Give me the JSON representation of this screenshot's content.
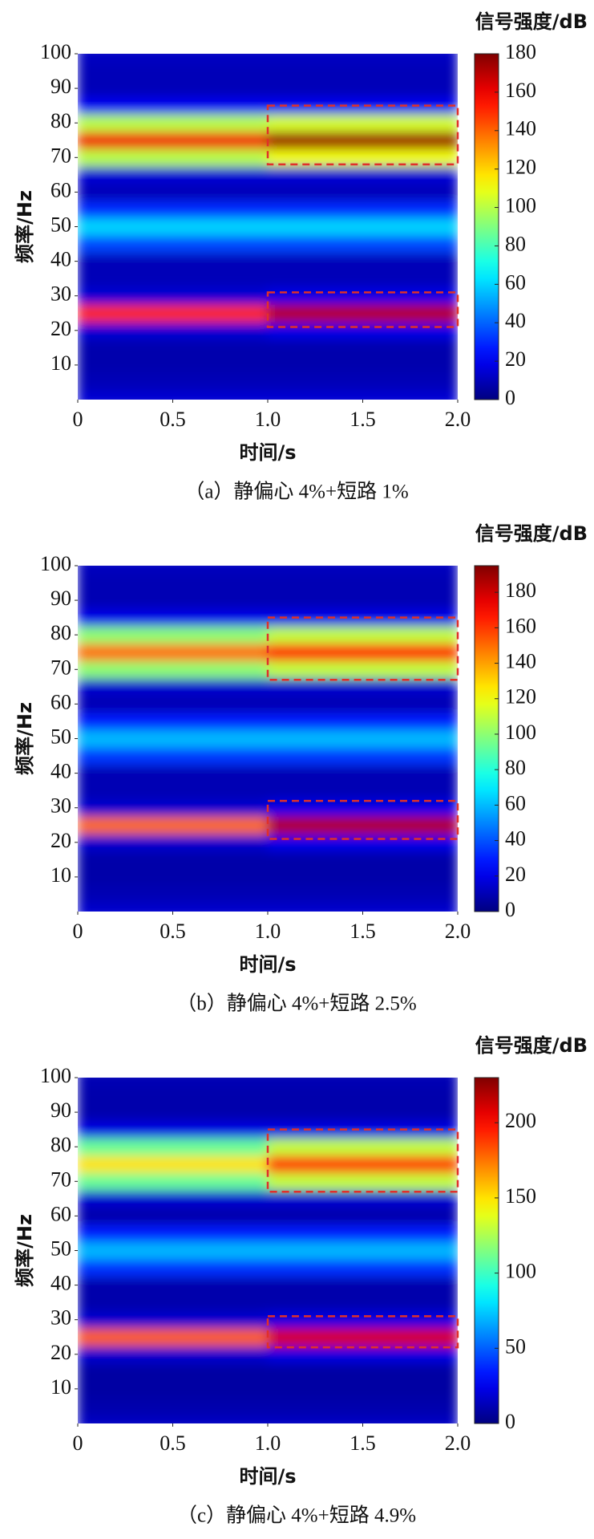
{
  "chart_data": [
    {
      "type": "heatmap",
      "colorbar_label": "信号强度/dB",
      "ylabel": "频率/Hz",
      "xlabel": "时间/s",
      "caption": "（a）静偏心 4%+短路 1%",
      "colormap": "jet",
      "xlim": [
        0,
        2
      ],
      "ylim": [
        0,
        100
      ],
      "xticks": [
        0,
        0.5,
        {
          "value": 1,
          "label": "1.0"
        },
        1.5,
        {
          "value": 2,
          "label": "2.0"
        }
      ],
      "yticks": [
        10,
        20,
        30,
        40,
        50,
        60,
        70,
        80,
        90,
        100
      ],
      "zlim": [
        0,
        180
      ],
      "zticks": [
        0,
        20,
        40,
        60,
        80,
        100,
        120,
        140,
        160,
        180
      ],
      "x": [
        0.25,
        0.75,
        1.25,
        1.75
      ],
      "y": [
        0,
        5,
        10,
        15,
        20,
        25,
        30,
        35,
        40,
        45,
        50,
        55,
        60,
        65,
        70,
        75,
        80,
        85,
        90,
        95,
        100
      ],
      "z": [
        [
          15,
          15,
          15,
          15
        ],
        [
          10,
          10,
          10,
          10
        ],
        [
          8,
          8,
          8,
          8
        ],
        [
          8,
          8,
          8,
          8
        ],
        [
          15,
          15,
          18,
          18
        ],
        [
          150,
          150,
          170,
          170
        ],
        [
          15,
          15,
          18,
          18
        ],
        [
          10,
          10,
          10,
          10
        ],
        [
          10,
          10,
          10,
          10
        ],
        [
          35,
          35,
          35,
          35
        ],
        [
          60,
          60,
          60,
          60
        ],
        [
          30,
          30,
          30,
          30
        ],
        [
          10,
          10,
          10,
          10
        ],
        [
          15,
          15,
          15,
          15
        ],
        [
          100,
          100,
          110,
          110
        ],
        [
          160,
          160,
          175,
          175
        ],
        [
          100,
          100,
          105,
          105
        ],
        [
          20,
          20,
          20,
          20
        ],
        [
          10,
          10,
          10,
          10
        ],
        [
          10,
          10,
          10,
          10
        ],
        [
          12,
          12,
          12,
          12
        ]
      ],
      "boxes": [
        {
          "xlim": [
            1,
            2
          ],
          "ylim": [
            68,
            85
          ]
        },
        {
          "xlim": [
            1,
            2
          ],
          "ylim": [
            21,
            31
          ]
        }
      ]
    },
    {
      "type": "heatmap",
      "colorbar_label": "信号强度/dB",
      "ylabel": "频率/Hz",
      "xlabel": "时间/s",
      "caption": "（b）静偏心 4%+短路 2.5%",
      "colormap": "jet",
      "xlim": [
        0,
        2
      ],
      "ylim": [
        0,
        100
      ],
      "xticks": [
        0,
        0.5,
        {
          "value": 1,
          "label": "1.0"
        },
        1.5,
        {
          "value": 2,
          "label": "2.0"
        }
      ],
      "yticks": [
        10,
        20,
        30,
        40,
        50,
        60,
        70,
        80,
        90,
        100
      ],
      "zlim": [
        0,
        195
      ],
      "zticks": [
        0,
        20,
        40,
        60,
        80,
        100,
        120,
        140,
        160,
        180
      ],
      "x": [
        0.25,
        0.75,
        1.25,
        1.75
      ],
      "y": [
        0,
        5,
        10,
        15,
        20,
        25,
        30,
        35,
        40,
        45,
        50,
        55,
        60,
        65,
        70,
        75,
        80,
        85,
        90,
        95,
        100
      ],
      "z": [
        [
          15,
          15,
          15,
          15
        ],
        [
          10,
          10,
          10,
          10
        ],
        [
          8,
          8,
          8,
          8
        ],
        [
          8,
          8,
          8,
          8
        ],
        [
          15,
          15,
          20,
          20
        ],
        [
          150,
          150,
          185,
          185
        ],
        [
          15,
          15,
          20,
          20
        ],
        [
          10,
          10,
          10,
          10
        ],
        [
          10,
          10,
          10,
          10
        ],
        [
          35,
          35,
          35,
          35
        ],
        [
          60,
          60,
          60,
          60
        ],
        [
          30,
          30,
          30,
          30
        ],
        [
          10,
          10,
          10,
          10
        ],
        [
          15,
          15,
          15,
          15
        ],
        [
          100,
          100,
          110,
          110
        ],
        [
          150,
          150,
          170,
          170
        ],
        [
          100,
          100,
          110,
          110
        ],
        [
          20,
          20,
          20,
          20
        ],
        [
          10,
          10,
          10,
          10
        ],
        [
          10,
          10,
          10,
          10
        ],
        [
          12,
          12,
          12,
          12
        ]
      ],
      "boxes": [
        {
          "xlim": [
            1,
            2
          ],
          "ylim": [
            67,
            85
          ]
        },
        {
          "xlim": [
            1,
            2
          ],
          "ylim": [
            21,
            32
          ]
        }
      ]
    },
    {
      "type": "heatmap",
      "colorbar_label": "信号强度/dB",
      "ylabel": "频率/Hz",
      "xlabel": "时间/s",
      "caption": "（c）静偏心 4%+短路 4.9%",
      "colormap": "jet",
      "xlim": [
        0,
        2
      ],
      "ylim": [
        0,
        100
      ],
      "xticks": [
        0,
        0.5,
        {
          "value": 1,
          "label": "1.0"
        },
        1.5,
        {
          "value": 2,
          "label": "2.0"
        }
      ],
      "yticks": [
        10,
        20,
        30,
        40,
        50,
        60,
        70,
        80,
        90,
        100
      ],
      "zlim": [
        0,
        230
      ],
      "zticks": [
        0,
        50,
        100,
        150,
        200
      ],
      "x": [
        0.25,
        0.75,
        1.25,
        1.75
      ],
      "y": [
        0,
        5,
        10,
        15,
        20,
        25,
        30,
        35,
        40,
        45,
        50,
        55,
        60,
        65,
        70,
        75,
        80,
        85,
        90,
        95,
        100
      ],
      "z": [
        [
          15,
          15,
          15,
          15
        ],
        [
          10,
          10,
          10,
          10
        ],
        [
          8,
          8,
          8,
          8
        ],
        [
          8,
          8,
          8,
          8
        ],
        [
          18,
          18,
          22,
          22
        ],
        [
          180,
          180,
          210,
          210
        ],
        [
          18,
          18,
          22,
          22
        ],
        [
          10,
          10,
          10,
          10
        ],
        [
          10,
          10,
          10,
          10
        ],
        [
          40,
          40,
          40,
          40
        ],
        [
          70,
          70,
          70,
          70
        ],
        [
          35,
          35,
          35,
          35
        ],
        [
          10,
          10,
          10,
          10
        ],
        [
          18,
          18,
          18,
          18
        ],
        [
          110,
          110,
          130,
          130
        ],
        [
          150,
          150,
          190,
          190
        ],
        [
          110,
          110,
          130,
          130
        ],
        [
          22,
          22,
          22,
          22
        ],
        [
          10,
          10,
          10,
          10
        ],
        [
          10,
          10,
          10,
          10
        ],
        [
          12,
          12,
          12,
          12
        ]
      ],
      "boxes": [
        {
          "xlim": [
            1,
            2
          ],
          "ylim": [
            67,
            85
          ]
        },
        {
          "xlim": [
            1,
            2
          ],
          "ylim": [
            22,
            31
          ]
        }
      ]
    }
  ]
}
